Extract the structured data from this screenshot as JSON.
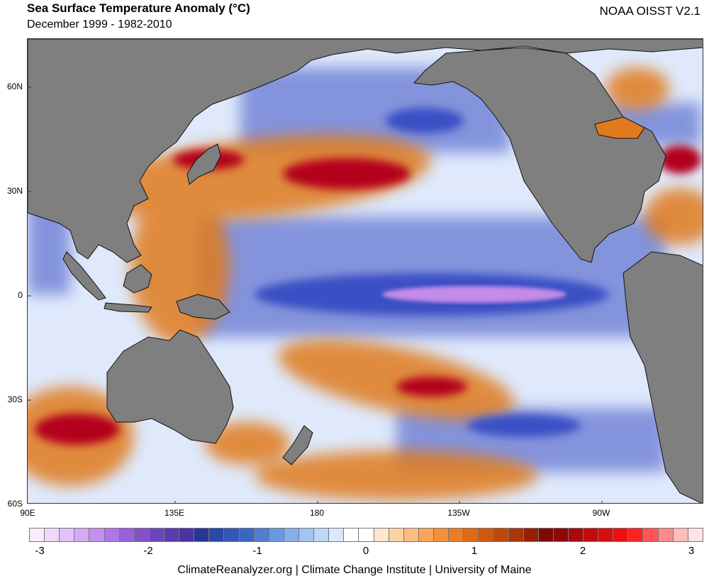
{
  "header": {
    "title": "Sea Surface Temperature Anomaly (°C)",
    "subtitle": "December 1999 - 1982-2010",
    "dataset": "NOAA OISST V2.1"
  },
  "map": {
    "latitude_labels": [
      "60N",
      "30N",
      "0",
      "30S",
      "60S"
    ],
    "longitude_labels": [
      "90E",
      "135E",
      "180",
      "135W",
      "90W"
    ],
    "colors": {
      "land": "#7f7f7f",
      "ocean_base": "#dfe9fb",
      "warm": "#e07a1f",
      "hot": "#b3001f",
      "cold": "#3a4fc4",
      "very_cold": "#c48be8"
    }
  },
  "colorbar": {
    "tick_labels": [
      "-3",
      "-2",
      "-1",
      "0",
      "1",
      "2",
      "3"
    ],
    "swatches": [
      "#f9ecfe",
      "#eed9fc",
      "#e2c2fa",
      "#d4aaf5",
      "#c48fee",
      "#b075e6",
      "#9a5fd8",
      "#8450c8",
      "#6e44bd",
      "#5a3bb0",
      "#4a33a3",
      "#283694",
      "#2b48a8",
      "#3357b7",
      "#3b67c4",
      "#4f7ed3",
      "#6b98e0",
      "#86aeea",
      "#a2c4f2",
      "#bed7f7",
      "#dbe8fb",
      "#ffffff",
      "#ffffff",
      "#fee6cf",
      "#fdd3a6",
      "#fcbd7f",
      "#f8a55b",
      "#f2903d",
      "#e97c24",
      "#dd6a14",
      "#cf590c",
      "#bf4708",
      "#ac3506",
      "#962003",
      "#7d0a02",
      "#900808",
      "#a80b0b",
      "#c10c0c",
      "#d80e0e",
      "#ee1010",
      "#ff2020",
      "#ff5555",
      "#ff8a8a",
      "#ffbcbc",
      "#ffe3e3"
    ]
  },
  "footer": {
    "credits": "ClimateReanalyzer.org | Climate Change Institute | University of Maine"
  }
}
